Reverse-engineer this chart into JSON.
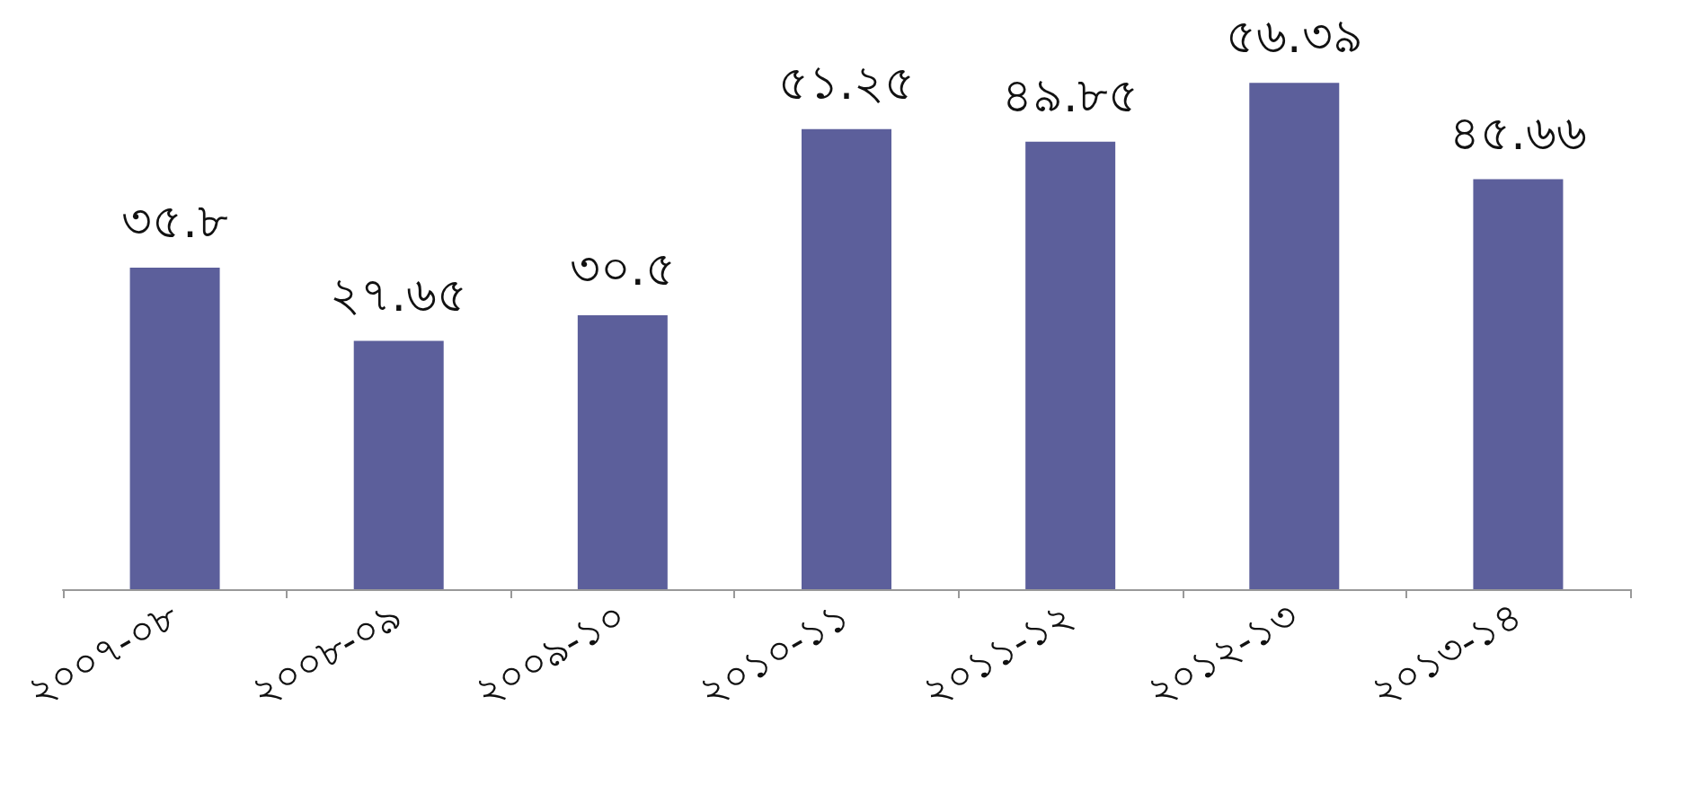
{
  "chart_data": {
    "type": "bar",
    "categories": [
      "২০০৭-০৮",
      "২০০৮-০৯",
      "২০০৯-১০",
      "২০১০-১১",
      "২০১১-১২",
      "২০১২-১৩",
      "২০১৩-১৪"
    ],
    "values": [
      35.8,
      27.65,
      30.5,
      51.25,
      49.85,
      56.39,
      45.66
    ],
    "value_labels": [
      "৩৫.৮",
      "২৭.৬৫",
      "৩০.৫",
      "৫১.২৫",
      "৪৯.৮৫",
      "৫৬.৩৯",
      "৪৫.৬৬"
    ],
    "color": "#5c5f9b"
  }
}
